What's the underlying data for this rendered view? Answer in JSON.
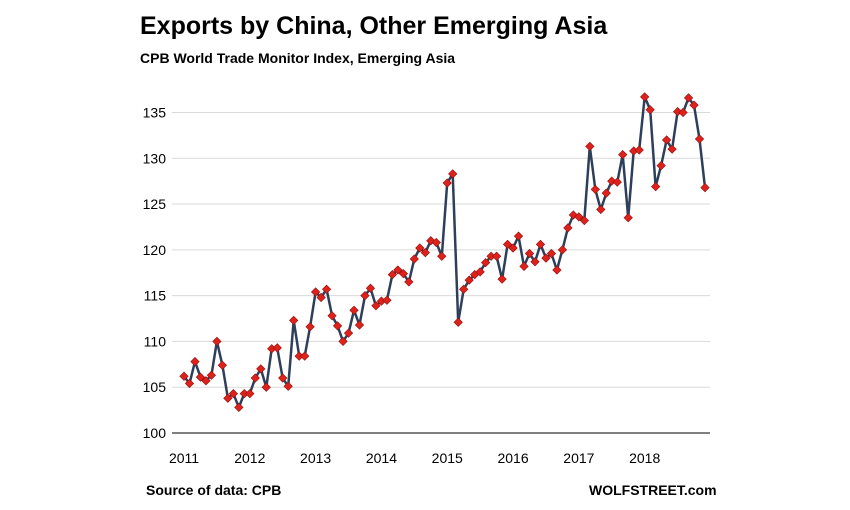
{
  "chart_data": {
    "type": "line",
    "title": "Exports by China, Other Emerging Asia",
    "subtitle": "CPB World Trade Monitor Index, Emerging Asia",
    "xlabel": "",
    "ylabel": "",
    "ylim": [
      100,
      135
    ],
    "y_ticks": [
      100,
      105,
      110,
      115,
      120,
      125,
      130,
      135
    ],
    "x_ticks": [
      "2011",
      "2012",
      "2013",
      "2014",
      "2015",
      "2016",
      "2017",
      "2018"
    ],
    "grid": true,
    "legend": "none",
    "line_color": "#2e3f5c",
    "marker_color": "#e0201a",
    "series": [
      {
        "name": "",
        "x_start": "2011-01",
        "frequency": "monthly",
        "values": [
          106.2,
          105.4,
          107.8,
          106.1,
          105.7,
          106.3,
          110.0,
          107.4,
          103.8,
          104.3,
          102.8,
          104.3,
          104.3,
          106.0,
          107.0,
          105.0,
          109.2,
          109.3,
          106.0,
          105.1,
          112.3,
          108.4,
          108.4,
          111.6,
          115.4,
          114.8,
          115.7,
          112.8,
          111.7,
          110.0,
          110.9,
          113.4,
          111.8,
          115.0,
          115.8,
          113.9,
          114.4,
          114.5,
          117.3,
          117.8,
          117.4,
          116.5,
          119.0,
          120.2,
          119.7,
          121.0,
          120.8,
          119.3,
          127.3,
          128.3,
          112.1,
          115.7,
          116.7,
          117.3,
          117.6,
          118.6,
          119.3,
          119.3,
          116.8,
          120.6,
          120.2,
          121.5,
          118.2,
          119.6,
          118.7,
          120.6,
          119.1,
          119.6,
          117.8,
          120.0,
          122.4,
          123.8,
          123.6,
          123.2,
          131.3,
          126.6,
          124.4,
          126.2,
          127.5,
          127.4,
          130.4,
          123.5,
          130.8,
          130.9,
          136.7,
          135.3,
          126.9,
          129.2,
          132.0,
          131.0,
          135.1,
          135.0,
          136.6,
          135.8,
          132.1,
          126.8
        ]
      }
    ]
  },
  "footer": {
    "source": "Source of data: CPB",
    "brand": "WOLFSTREET.com"
  }
}
